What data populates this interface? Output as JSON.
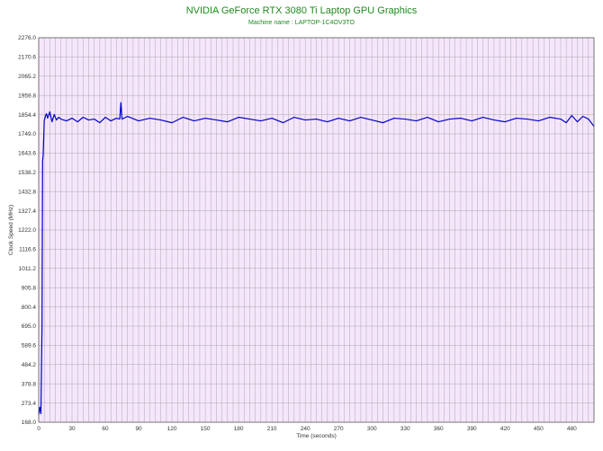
{
  "colors": {
    "plot_bg": "#f5e6fb",
    "grid": "#9a9a9a",
    "series": "#0000c8",
    "title": "#1f8a1f"
  },
  "chart_data": {
    "type": "line",
    "title": "NVIDIA GeForce RTX 3080 Ti Laptop GPU Graphics",
    "subtitle": "Machine name : LAPTOP-1C4OV3TO",
    "xlabel": "Time (seconds)",
    "ylabel": "Clock Speed (MHz)",
    "xlim": [
      0,
      500
    ],
    "ylim": [
      168.0,
      2276.0
    ],
    "x_ticks": [
      "0",
      "30",
      "60",
      "90",
      "120",
      "150",
      "180",
      "210",
      "240",
      "270",
      "300",
      "330",
      "360",
      "390",
      "420",
      "450",
      "480"
    ],
    "y_ticks": [
      "168.0",
      "273.4",
      "378.8",
      "484.2",
      "589.6",
      "695.0",
      "800.4",
      "905.8",
      "1011.2",
      "1116.6",
      "1222.0",
      "1327.4",
      "1432.8",
      "1538.2",
      "1643.6",
      "1749.0",
      "1854.4",
      "1959.8",
      "2065.2",
      "2170.6",
      "2276.0"
    ],
    "grid": true,
    "series": [
      {
        "x": [
          0,
          1,
          2,
          3,
          3.5,
          4,
          5,
          6,
          7,
          8,
          10,
          12,
          14,
          16,
          18,
          20,
          25,
          30,
          35,
          40,
          45,
          50,
          55,
          60,
          65,
          70,
          73,
          74,
          75,
          80,
          90,
          100,
          110,
          120,
          130,
          140,
          150,
          160,
          170,
          180,
          190,
          200,
          210,
          220,
          230,
          240,
          250,
          260,
          270,
          280,
          290,
          300,
          310,
          320,
          330,
          340,
          350,
          360,
          370,
          380,
          390,
          400,
          410,
          420,
          430,
          440,
          450,
          460,
          470,
          475,
          480,
          485,
          490,
          495,
          500
        ],
        "y": [
          210,
          250,
          215,
          700,
          1600,
          1630,
          1820,
          1845,
          1860,
          1835,
          1870,
          1815,
          1855,
          1825,
          1840,
          1830,
          1820,
          1835,
          1815,
          1840,
          1825,
          1830,
          1810,
          1840,
          1820,
          1835,
          1830,
          1920,
          1830,
          1845,
          1820,
          1835,
          1825,
          1810,
          1840,
          1820,
          1835,
          1825,
          1815,
          1840,
          1830,
          1820,
          1835,
          1810,
          1840,
          1825,
          1830,
          1815,
          1835,
          1820,
          1840,
          1825,
          1810,
          1835,
          1830,
          1820,
          1840,
          1815,
          1830,
          1835,
          1820,
          1840,
          1825,
          1815,
          1835,
          1830,
          1820,
          1840,
          1830,
          1810,
          1850,
          1815,
          1845,
          1830,
          1790
        ]
      }
    ]
  }
}
